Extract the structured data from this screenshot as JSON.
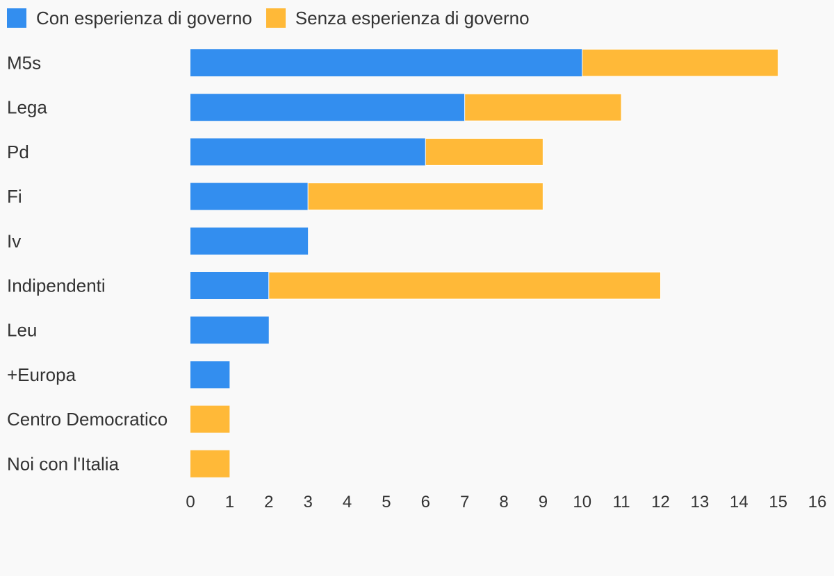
{
  "colors": {
    "background": "#f9f9f9",
    "text": "#333333",
    "series_1": "#338eef",
    "series_2": "#ffb938"
  },
  "chart_data": {
    "type": "bar",
    "orientation": "horizontal",
    "stacked": true,
    "categories": [
      "M5s",
      "Lega",
      "Pd",
      "Fi",
      "Iv",
      "Indipendenti",
      "Leu",
      "+Europa",
      "Centro Democratico",
      "Noi con l'Italia"
    ],
    "series": [
      {
        "name": "Con esperienza di governo",
        "color": "#338eef",
        "values": [
          10,
          7,
          6,
          3,
          3,
          2,
          2,
          1,
          0,
          0
        ]
      },
      {
        "name": "Senza esperienza di governo",
        "color": "#ffb938",
        "values": [
          5,
          4,
          3,
          6,
          0,
          10,
          0,
          0,
          1,
          1
        ]
      }
    ],
    "xlim": [
      0,
      16
    ],
    "xticks": [
      "0",
      "1",
      "2",
      "3",
      "4",
      "5",
      "6",
      "7",
      "8",
      "9",
      "10",
      "11",
      "12",
      "13",
      "14",
      "15",
      "16"
    ],
    "grid": false,
    "legend": "top-left"
  }
}
